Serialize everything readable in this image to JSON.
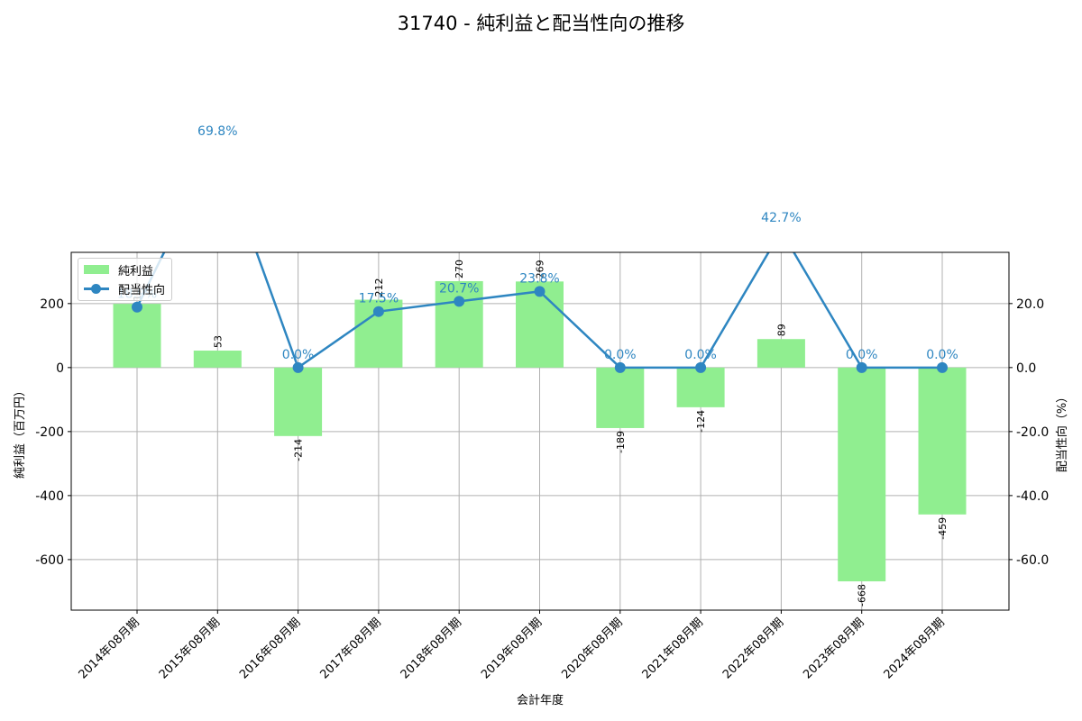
{
  "title": "31740 - 純利益と配当性向の推移",
  "chart_data": {
    "type": "bar+line",
    "title": "31740 - 純利益と配当性向の推移",
    "xlabel": "会計年度",
    "ylabel_left": "純利益（百万円）",
    "ylabel_right": "配当性向（%）",
    "categories": [
      "2014年08月期",
      "2015年08月期",
      "2016年08月期",
      "2017年08月期",
      "2018年08月期",
      "2019年08月期",
      "2020年08月期",
      "2021年08月期",
      "2022年08月期",
      "2023年08月期",
      "2024年08月期"
    ],
    "series": [
      {
        "name": "純利益",
        "type": "bar",
        "axis": "left",
        "color": "#90ee90",
        "values": [
          199,
          53,
          -214,
          212,
          270,
          269,
          -189,
          -124,
          89,
          -668,
          -459
        ],
        "labels": [
          "199",
          "53",
          "-214",
          "212",
          "270",
          "269",
          "-189",
          "-124",
          "89",
          "-668",
          "-459"
        ]
      },
      {
        "name": "配当性向",
        "type": "line",
        "axis": "right",
        "color": "#2e86c1",
        "values": [
          18.9,
          69.8,
          0.0,
          17.5,
          20.7,
          23.8,
          0.0,
          0.0,
          42.7,
          0.0,
          0.0
        ],
        "labels": [
          "18.9%",
          "69.8%",
          "0.0%",
          "17.5%",
          "20.7%",
          "23.8%",
          "0.0%",
          "0.0%",
          "42.7%",
          "0.0%",
          "0.0%"
        ]
      }
    ],
    "ylim_left": [
      -758,
      360
    ],
    "ylim_right": [
      -75.8,
      36.0
    ],
    "yticks_left": [
      200,
      0,
      -200,
      -400,
      -600
    ],
    "yticks_left_labels": [
      "200",
      "0",
      "-200",
      "-400",
      "-600"
    ],
    "yticks_right": [
      20,
      0,
      -20,
      -40,
      -60
    ],
    "yticks_right_labels": [
      "20.0",
      "0.0",
      "-20.0",
      "-40.0",
      "-60.0"
    ],
    "grid": true,
    "legend_position": "upper left"
  },
  "legend": {
    "items": [
      {
        "label": "純利益"
      },
      {
        "label": "配当性向"
      }
    ]
  }
}
